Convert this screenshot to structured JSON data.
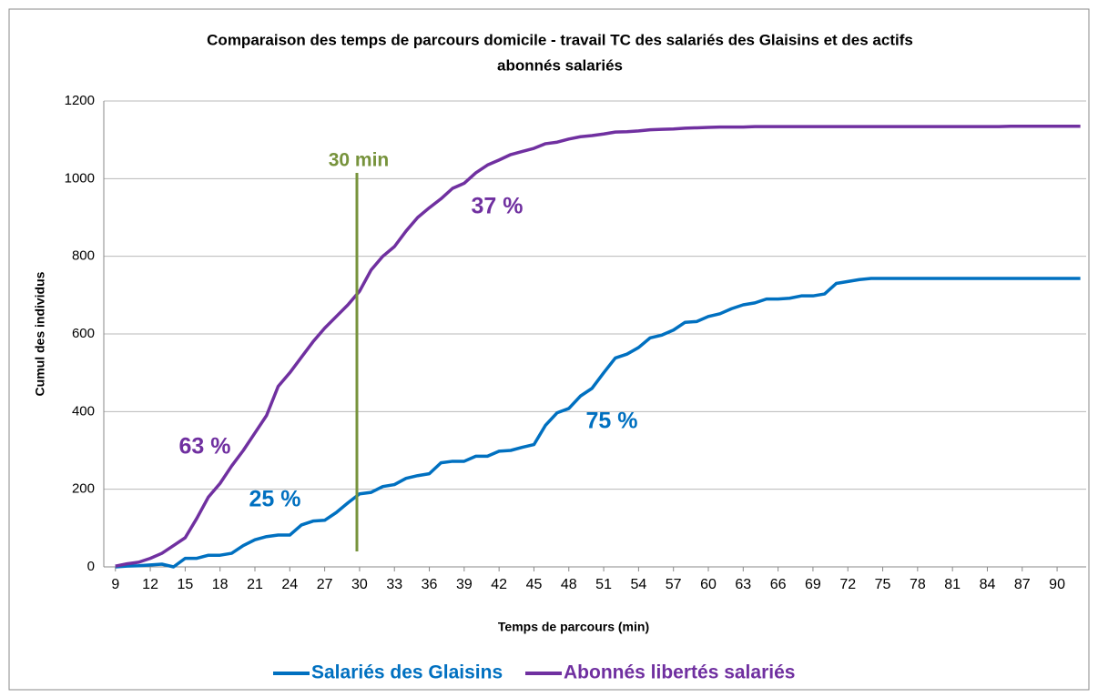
{
  "chart_data": {
    "type": "line",
    "title": [
      "Comparaison des temps de parcours domicile - travail TC des salariés des Glaisins et des actifs",
      "abonnés salariés"
    ],
    "x_label": "Temps de parcours (min)",
    "y_label": "Cumul des individus",
    "x": [
      9,
      10,
      11,
      12,
      13,
      14,
      15,
      16,
      17,
      18,
      19,
      20,
      21,
      22,
      23,
      24,
      25,
      26,
      27,
      28,
      29,
      30,
      31,
      32,
      33,
      34,
      35,
      36,
      37,
      38,
      39,
      40,
      41,
      42,
      43,
      44,
      45,
      46,
      47,
      48,
      49,
      50,
      51,
      52,
      53,
      54,
      55,
      56,
      57,
      58,
      59,
      60,
      61,
      62,
      63,
      64,
      65,
      66,
      67,
      68,
      69,
      70,
      71,
      72,
      73,
      74,
      75,
      76,
      77,
      78,
      79,
      80,
      81,
      82,
      83,
      84,
      85,
      86,
      87,
      88,
      89,
      90,
      91,
      92
    ],
    "series": [
      {
        "name": "Salariés des Glaisins",
        "color": "#0070c0",
        "values": [
          0,
          2,
          3,
          5,
          7,
          0,
          22,
          22,
          30,
          30,
          35,
          55,
          70,
          78,
          82,
          82,
          108,
          118,
          120,
          140,
          165,
          188,
          192,
          207,
          212,
          228,
          235,
          240,
          268,
          272,
          272,
          285,
          285,
          298,
          300,
          308,
          315,
          365,
          397,
          408,
          440,
          460,
          500,
          538,
          548,
          565,
          590,
          597,
          610,
          630,
          632,
          645,
          652,
          665,
          675,
          680,
          690,
          690,
          692,
          698,
          698,
          703,
          730,
          735,
          740,
          743,
          743,
          743,
          743,
          743,
          743,
          743,
          743,
          743,
          743,
          743,
          743,
          743,
          743,
          743,
          743,
          743,
          743,
          743
        ]
      },
      {
        "name": "Abonnés libertés salariés",
        "color": "#7030a0",
        "values": [
          2,
          8,
          12,
          22,
          35,
          55,
          75,
          125,
          180,
          215,
          260,
          300,
          345,
          390,
          465,
          500,
          540,
          580,
          615,
          645,
          675,
          710,
          765,
          800,
          825,
          865,
          900,
          925,
          948,
          975,
          988,
          1015,
          1035,
          1048,
          1062,
          1070,
          1078,
          1090,
          1094,
          1102,
          1108,
          1111,
          1115,
          1120,
          1121,
          1123,
          1126,
          1127,
          1128,
          1130,
          1131,
          1132,
          1133,
          1133,
          1133,
          1134,
          1134,
          1134,
          1134,
          1134,
          1134,
          1134,
          1134,
          1134,
          1134,
          1134,
          1134,
          1134,
          1134,
          1134,
          1134,
          1134,
          1134,
          1134,
          1134,
          1134,
          1134,
          1135,
          1135,
          1135,
          1135,
          1135,
          1135,
          1135
        ]
      }
    ],
    "xlim": [
      8,
      92.5
    ],
    "xticks": [
      9,
      12,
      15,
      18,
      21,
      24,
      27,
      30,
      33,
      36,
      39,
      42,
      45,
      48,
      51,
      54,
      57,
      60,
      63,
      66,
      69,
      72,
      75,
      78,
      81,
      84,
      87,
      90
    ],
    "ylim": [
      0,
      1200
    ],
    "yticks": [
      0,
      200,
      400,
      600,
      800,
      1000,
      1200
    ],
    "grid": true,
    "legend": "bottom",
    "annotations": [
      "30 min",
      "63 %",
      "25 %",
      "37 %",
      "75 %"
    ]
  }
}
